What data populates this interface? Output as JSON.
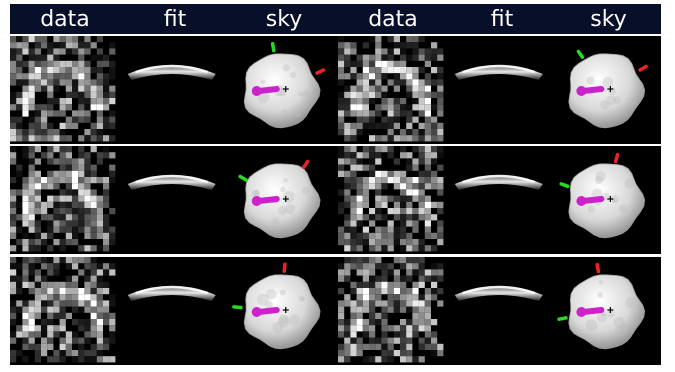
{
  "headers": [
    "data",
    "fit",
    "sky",
    "data",
    "fit",
    "sky"
  ],
  "colors": {
    "header_bg": "#080f28",
    "header_text": "#ffffff",
    "panel_bg": "#000000",
    "separator": "#ffffff",
    "north_marker": "#22dd22",
    "east_marker": "#ee2222",
    "spin_arrow": "#cc22cc",
    "center_mark": "#000000"
  },
  "icons": {
    "asteroid": "asteroid-shape-model-icon",
    "north_marker": "north-marker-icon",
    "east_marker": "east-marker-icon",
    "spin_arrow": "spin-axis-arrow-icon",
    "center_mark": "center-crosshair-icon"
  },
  "grid": {
    "rows": 3,
    "column_groups": 2
  }
}
